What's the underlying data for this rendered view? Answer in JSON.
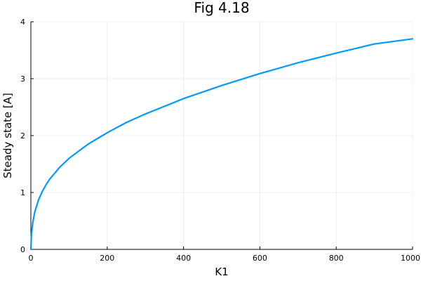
{
  "chart_data": {
    "type": "line",
    "title": "Fig 4.18",
    "xlabel": "K1",
    "ylabel": "Steady state [A]",
    "xlim": [
      0,
      1000
    ],
    "ylim": [
      0,
      4
    ],
    "xticks": [
      0,
      200,
      400,
      600,
      800,
      1000
    ],
    "yticks": [
      0,
      1,
      2,
      3,
      4
    ],
    "grid": true,
    "legend": "none",
    "series": [
      {
        "color": "#009AFA",
        "x": [
          0,
          1,
          2,
          5,
          10,
          20,
          30,
          40,
          50,
          75,
          100,
          150,
          200,
          250,
          300,
          400,
          500,
          600,
          700,
          800,
          900,
          1000
        ],
        "y": [
          0,
          0.19,
          0.29,
          0.47,
          0.65,
          0.87,
          1.02,
          1.14,
          1.24,
          1.44,
          1.6,
          1.85,
          2.05,
          2.23,
          2.38,
          2.65,
          2.88,
          3.09,
          3.28,
          3.45,
          3.61,
          3.7
        ]
      }
    ]
  }
}
